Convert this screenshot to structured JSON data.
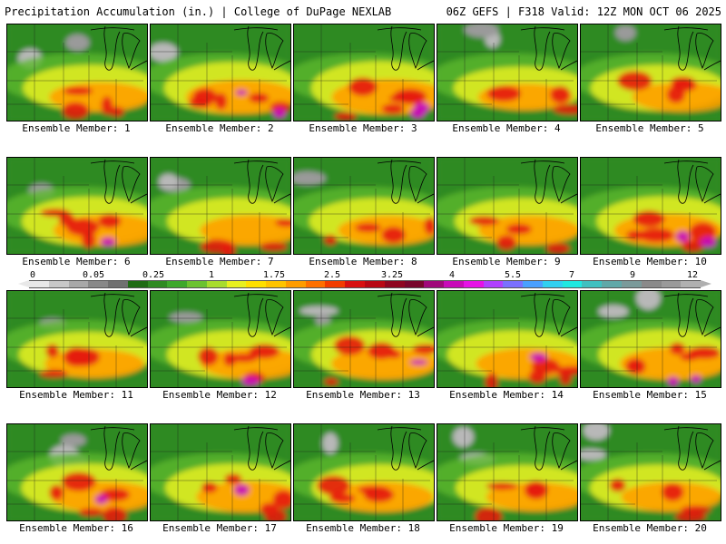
{
  "header": {
    "left_title": "Precipitation Accumulation (in.) | College of DuPage NEXLAB",
    "right_title": "06Z GEFS | F318 Valid: 12Z MON OCT 06 2025"
  },
  "colorbar": {
    "labels": [
      "0",
      "0.05",
      "0.25",
      "1",
      "1.75",
      "2.5",
      "3.25",
      "4",
      "5.5",
      "7",
      "9",
      "12"
    ],
    "colors": [
      "#e8e8e8",
      "#c8c8c8",
      "#a8a8a8",
      "#888888",
      "#707070",
      "#1f6b14",
      "#2f8a22",
      "#3ea82c",
      "#6cc230",
      "#a8dc2e",
      "#e8f020",
      "#ffe000",
      "#ffc400",
      "#ff9c00",
      "#ff7000",
      "#f23c00",
      "#d81010",
      "#b80814",
      "#8e0620",
      "#78062c",
      "#a0087a",
      "#c80ab8",
      "#e612e6",
      "#b040ff",
      "#7a70ff",
      "#4aa0ff",
      "#30d0f0",
      "#20e8e0",
      "#40c0c0",
      "#60a8a8",
      "#7a9a9a",
      "#8a8a8a",
      "#9a9a9a",
      "#b0b0b0"
    ]
  },
  "members": [
    {
      "label": "Ensemble Member: 1",
      "intensity": 0.55,
      "grey": 0.35
    },
    {
      "label": "Ensemble Member: 2",
      "intensity": 0.85,
      "grey": 0.2
    },
    {
      "label": "Ensemble Member: 3",
      "intensity": 0.95,
      "grey": 0.05
    },
    {
      "label": "Ensemble Member: 4",
      "intensity": 0.35,
      "grey": 0.3
    },
    {
      "label": "Ensemble Member: 5",
      "intensity": 0.55,
      "grey": 0.15
    },
    {
      "label": "Ensemble Member: 6",
      "intensity": 0.7,
      "grey": 0.15
    },
    {
      "label": "Ensemble Member: 7",
      "intensity": 0.6,
      "grey": 0.25
    },
    {
      "label": "Ensemble Member: 8",
      "intensity": 0.55,
      "grey": 0.2
    },
    {
      "label": "Ensemble Member: 9",
      "intensity": 0.55,
      "grey": 0.05
    },
    {
      "label": "Ensemble Member: 10",
      "intensity": 0.75,
      "grey": 0.05
    },
    {
      "label": "Ensemble Member: 11",
      "intensity": 0.5,
      "grey": 0.15
    },
    {
      "label": "Ensemble Member: 12",
      "intensity": 0.65,
      "grey": 0.2
    },
    {
      "label": "Ensemble Member: 13",
      "intensity": 0.7,
      "grey": 0.4
    },
    {
      "label": "Ensemble Member: 14",
      "intensity": 0.65,
      "grey": 0.05
    },
    {
      "label": "Ensemble Member: 15",
      "intensity": 0.75,
      "grey": 0.25
    },
    {
      "label": "Ensemble Member: 16",
      "intensity": 0.65,
      "grey": 0.5
    },
    {
      "label": "Ensemble Member: 17",
      "intensity": 0.65,
      "grey": 0.05
    },
    {
      "label": "Ensemble Member: 18",
      "intensity": 0.6,
      "grey": 0.1
    },
    {
      "label": "Ensemble Member: 19",
      "intensity": 0.5,
      "grey": 0.4
    },
    {
      "label": "Ensemble Member: 20",
      "intensity": 0.55,
      "grey": 0.25
    }
  ]
}
